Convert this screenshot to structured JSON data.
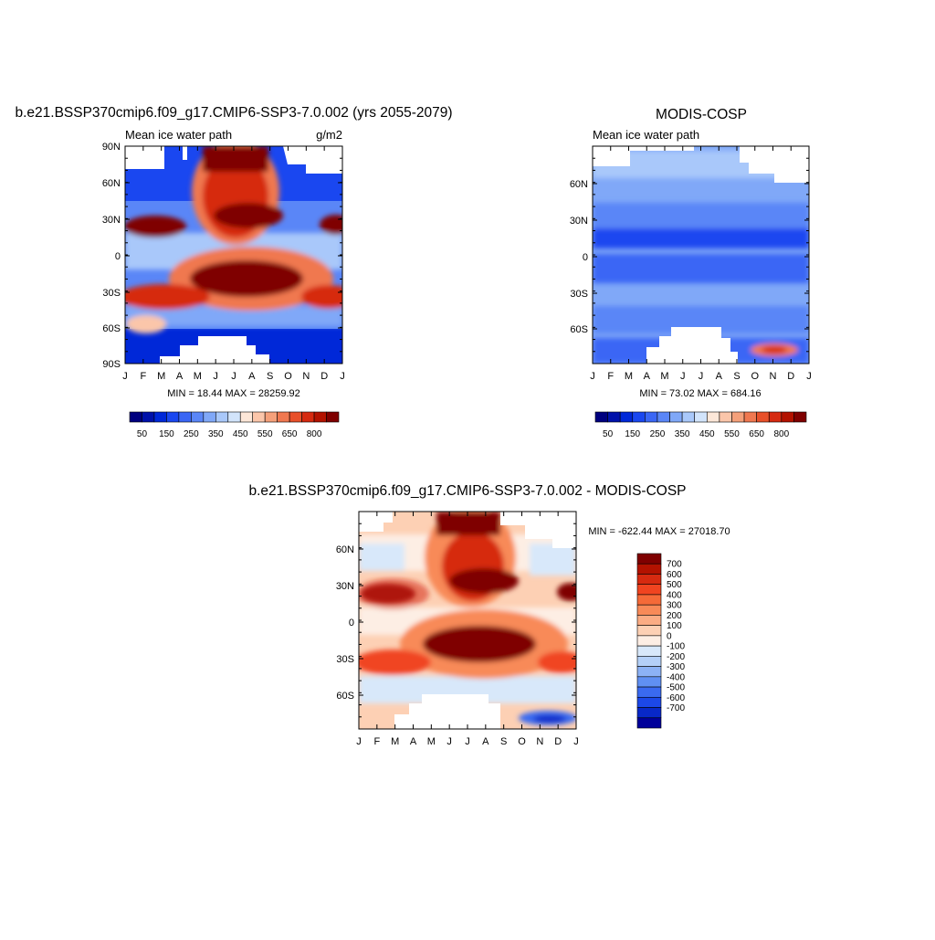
{
  "chart_data": [
    {
      "type": "heatmap",
      "title": "b.e21.BSSP370cmip6.f09_g17.CMIP6-SSP3-7.0.002 (yrs 2055-2079)",
      "subtitle_left": "Mean ice water path",
      "units": "g/m2",
      "x_ticks": [
        "J",
        "F",
        "M",
        "A",
        "M",
        "J",
        "J",
        "A",
        "S",
        "O",
        "N",
        "D",
        "J"
      ],
      "y_ticks": [
        "90N",
        "60N",
        "30N",
        "0",
        "30S",
        "60S",
        "90S"
      ],
      "stats": "MIN =  18.44 MAX = 28259.92",
      "colorbar_labels": [
        "50",
        "150",
        "250",
        "350",
        "450",
        "550",
        "650",
        "800"
      ],
      "colorbar_levels": [
        25,
        50,
        100,
        150,
        200,
        250,
        300,
        350,
        400,
        450,
        500,
        550,
        600,
        650,
        700,
        800
      ],
      "colors": [
        "#00007f",
        "#0011aa",
        "#0028d8",
        "#1a47f0",
        "#3a66f5",
        "#5a86f7",
        "#80a8f8",
        "#a9c8fa",
        "#d2e4fb",
        "#fde7d8",
        "#fbc6aa",
        "#f5a07a",
        "#f07850",
        "#e8502a",
        "#d62a10",
        "#b31200",
        "#7f0000"
      ],
      "grid": "contour-filled"
    },
    {
      "type": "heatmap",
      "title": "MODIS-COSP",
      "subtitle_left": "Mean ice water path",
      "x_ticks": [
        "J",
        "F",
        "M",
        "A",
        "M",
        "J",
        "J",
        "A",
        "S",
        "O",
        "N",
        "D",
        "J"
      ],
      "y_ticks": [
        "60N",
        "30N",
        "0",
        "30S",
        "60S"
      ],
      "stats": "MIN =  73.02 MAX = 684.16",
      "colorbar_labels": [
        "50",
        "150",
        "250",
        "350",
        "450",
        "550",
        "650",
        "800"
      ],
      "colorbar_levels": [
        25,
        50,
        100,
        150,
        200,
        250,
        300,
        350,
        400,
        450,
        500,
        550,
        600,
        650,
        700,
        800
      ]
    },
    {
      "type": "heatmap",
      "title": "b.e21.BSSP370cmip6.f09_g17.CMIP6-SSP3-7.0.002 - MODIS-COSP",
      "x_ticks": [
        "J",
        "F",
        "M",
        "A",
        "M",
        "J",
        "J",
        "A",
        "S",
        "O",
        "N",
        "D",
        "J"
      ],
      "y_ticks": [
        "60N",
        "30N",
        "0",
        "30S",
        "60S"
      ],
      "stats": "MIN = -622.44 MAX = 27018.70",
      "colorbar_labels": [
        "700",
        "600",
        "500",
        "400",
        "300",
        "200",
        "100",
        "0",
        "-100",
        "-200",
        "-300",
        "-400",
        "-500",
        "-600",
        "-700"
      ],
      "colors": [
        "#7f0000",
        "#b31200",
        "#d62a10",
        "#f04420",
        "#f56a38",
        "#f88a58",
        "#fbac84",
        "#fdd0b4",
        "#fdeee4",
        "#d8e8fa",
        "#b4d0f8",
        "#8cb2f5",
        "#6090f2",
        "#3a6af0",
        "#1c48e8",
        "#0828c8",
        "#00009a"
      ]
    }
  ]
}
